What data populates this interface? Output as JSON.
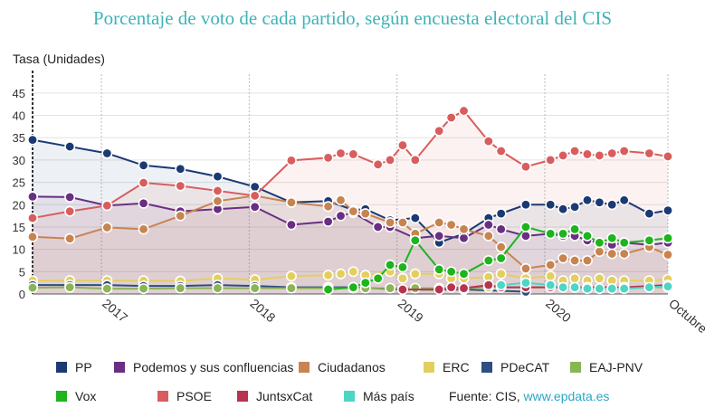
{
  "chart_data": {
    "type": "line",
    "title": "Porcentaje de voto de cada partido, según encuesta electoral del CIS",
    "ylabel": "Tasa (Unidades)",
    "ylim": [
      0,
      48
    ],
    "yticks": [
      0,
      5,
      10,
      15,
      20,
      25,
      30,
      35,
      40,
      45
    ],
    "xlim": [
      "2016-07-15",
      "2020-10-31"
    ],
    "xticks": [
      {
        "date": "2017-01-01",
        "label": "2017"
      },
      {
        "date": "2018-01-01",
        "label": "2018"
      },
      {
        "date": "2019-01-01",
        "label": "2019"
      },
      {
        "date": "2020-01-01",
        "label": "2020"
      },
      {
        "date": "2020-10-31",
        "label": "Octubre"
      }
    ],
    "grid": true,
    "legend_position": "bottom",
    "series": [
      {
        "name": "PP",
        "color": "#1b3a73",
        "points": [
          [
            "2016-07-15",
            34.5
          ],
          [
            "2016-10-15",
            33.0
          ],
          [
            "2017-01-15",
            31.5
          ],
          [
            "2017-04-15",
            28.8
          ],
          [
            "2017-07-15",
            28.0
          ],
          [
            "2017-10-15",
            26.3
          ],
          [
            "2018-01-15",
            24.0
          ],
          [
            "2018-04-15",
            20.5
          ],
          [
            "2018-07-15",
            20.8
          ],
          [
            "2018-09-15",
            18.8
          ],
          [
            "2018-10-15",
            19.0
          ],
          [
            "2018-12-15",
            16.5
          ],
          [
            "2019-02-15",
            17.0
          ],
          [
            "2019-04-15",
            11.5
          ],
          [
            "2019-06-15",
            13.5
          ],
          [
            "2019-08-15",
            17.0
          ],
          [
            "2019-09-15",
            18.0
          ],
          [
            "2019-11-15",
            20.0
          ],
          [
            "2020-01-15",
            20.0
          ],
          [
            "2020-02-15",
            19.0
          ],
          [
            "2020-03-15",
            19.5
          ],
          [
            "2020-04-15",
            21.0
          ],
          [
            "2020-05-15",
            20.5
          ],
          [
            "2020-06-15",
            20.0
          ],
          [
            "2020-07-15",
            21.0
          ],
          [
            "2020-09-15",
            18.0
          ],
          [
            "2020-10-31",
            18.7
          ]
        ]
      },
      {
        "name": "Podemos y sus confluencias",
        "color": "#6a2e82",
        "points": [
          [
            "2016-07-15",
            21.8
          ],
          [
            "2016-10-15",
            21.7
          ],
          [
            "2017-01-15",
            19.8
          ],
          [
            "2017-04-15",
            20.3
          ],
          [
            "2017-07-15",
            18.5
          ],
          [
            "2017-10-15",
            19.0
          ],
          [
            "2018-01-15",
            19.5
          ],
          [
            "2018-04-15",
            15.5
          ],
          [
            "2018-07-15",
            16.2
          ],
          [
            "2018-08-15",
            17.5
          ],
          [
            "2018-09-15",
            18.2
          ],
          [
            "2018-11-15",
            15.0
          ],
          [
            "2018-12-15",
            15.0
          ],
          [
            "2019-02-15",
            12.5
          ],
          [
            "2019-04-15",
            13.0
          ],
          [
            "2019-06-15",
            12.5
          ],
          [
            "2019-08-15",
            15.5
          ],
          [
            "2019-09-15",
            14.5
          ],
          [
            "2019-11-15",
            13.0
          ],
          [
            "2020-01-15",
            13.5
          ],
          [
            "2020-02-15",
            13.0
          ],
          [
            "2020-03-15",
            13.0
          ],
          [
            "2020-04-15",
            12.0
          ],
          [
            "2020-05-15",
            11.5
          ],
          [
            "2020-06-15",
            11.0
          ],
          [
            "2020-07-15",
            11.5
          ],
          [
            "2020-09-15",
            11.0
          ],
          [
            "2020-10-31",
            11.5
          ]
        ]
      },
      {
        "name": "Ciudadanos",
        "color": "#c88450",
        "points": [
          [
            "2016-07-15",
            12.8
          ],
          [
            "2016-10-15",
            12.4
          ],
          [
            "2017-01-15",
            14.9
          ],
          [
            "2017-04-15",
            14.5
          ],
          [
            "2017-07-15",
            17.5
          ],
          [
            "2017-10-15",
            20.8
          ],
          [
            "2018-01-15",
            22.0
          ],
          [
            "2018-04-15",
            20.5
          ],
          [
            "2018-07-15",
            19.6
          ],
          [
            "2018-08-15",
            21.0
          ],
          [
            "2018-09-15",
            18.5
          ],
          [
            "2018-10-15",
            18.0
          ],
          [
            "2018-12-15",
            16.0
          ],
          [
            "2019-01-15",
            16.0
          ],
          [
            "2019-02-15",
            13.5
          ],
          [
            "2019-04-15",
            16.0
          ],
          [
            "2019-05-15",
            15.5
          ],
          [
            "2019-06-15",
            14.5
          ],
          [
            "2019-08-15",
            13.0
          ],
          [
            "2019-09-15",
            10.5
          ],
          [
            "2019-11-15",
            5.7
          ],
          [
            "2020-01-15",
            6.5
          ],
          [
            "2020-02-15",
            8.0
          ],
          [
            "2020-03-15",
            7.5
          ],
          [
            "2020-04-15",
            7.5
          ],
          [
            "2020-05-15",
            9.5
          ],
          [
            "2020-06-15",
            9.0
          ],
          [
            "2020-07-15",
            9.0
          ],
          [
            "2020-09-15",
            10.5
          ],
          [
            "2020-10-31",
            8.8
          ]
        ]
      },
      {
        "name": "ERC",
        "color": "#e3cf5e",
        "points": [
          [
            "2016-07-15",
            3.0
          ],
          [
            "2016-10-15",
            3.0
          ],
          [
            "2017-01-15",
            3.0
          ],
          [
            "2017-04-15",
            3.0
          ],
          [
            "2017-07-15",
            2.9
          ],
          [
            "2017-10-15",
            3.5
          ],
          [
            "2018-01-15",
            3.2
          ],
          [
            "2018-04-15",
            4.0
          ],
          [
            "2018-07-15",
            4.2
          ],
          [
            "2018-08-15",
            4.5
          ],
          [
            "2018-09-15",
            5.0
          ],
          [
            "2018-10-15",
            4.2
          ],
          [
            "2018-12-15",
            5.0
          ],
          [
            "2019-01-15",
            3.5
          ],
          [
            "2019-02-15",
            4.5
          ],
          [
            "2019-04-15",
            4.5
          ],
          [
            "2019-05-15",
            3.5
          ],
          [
            "2019-06-15",
            3.5
          ],
          [
            "2019-08-15",
            3.8
          ],
          [
            "2019-09-15",
            4.5
          ],
          [
            "2019-11-15",
            3.5
          ],
          [
            "2020-01-15",
            4.0
          ],
          [
            "2020-02-15",
            3.0
          ],
          [
            "2020-03-15",
            3.5
          ],
          [
            "2020-04-15",
            3.0
          ],
          [
            "2020-05-15",
            3.5
          ],
          [
            "2020-06-15",
            3.0
          ],
          [
            "2020-07-15",
            3.0
          ],
          [
            "2020-09-15",
            3.0
          ],
          [
            "2020-10-31",
            3.3
          ]
        ]
      },
      {
        "name": "PDeCAT",
        "color": "#2c4e80",
        "points": [
          [
            "2016-07-15",
            2.0
          ],
          [
            "2016-10-15",
            2.0
          ],
          [
            "2017-01-15",
            2.0
          ],
          [
            "2017-04-15",
            1.8
          ],
          [
            "2017-07-15",
            1.8
          ],
          [
            "2017-10-15",
            2.0
          ],
          [
            "2018-01-15",
            1.8
          ],
          [
            "2018-04-15",
            1.5
          ],
          [
            "2018-07-15",
            1.5
          ],
          [
            "2018-09-15",
            1.5
          ],
          [
            "2019-01-15",
            1.0
          ],
          [
            "2019-06-15",
            1.0
          ],
          [
            "2019-11-15",
            0.5
          ]
        ]
      },
      {
        "name": "EAJ-PNV",
        "color": "#8bb455",
        "points": [
          [
            "2016-07-15",
            1.4
          ],
          [
            "2016-10-15",
            1.5
          ],
          [
            "2017-01-15",
            1.2
          ],
          [
            "2017-04-15",
            1.2
          ],
          [
            "2017-07-15",
            1.3
          ],
          [
            "2017-10-15",
            1.3
          ],
          [
            "2018-01-15",
            1.3
          ],
          [
            "2018-04-15",
            1.3
          ],
          [
            "2018-07-15",
            1.3
          ],
          [
            "2018-09-15",
            1.3
          ],
          [
            "2018-10-15",
            1.3
          ],
          [
            "2018-12-15",
            1.3
          ],
          [
            "2019-02-15",
            1.3
          ],
          [
            "2019-04-15",
            1.3
          ],
          [
            "2019-06-15",
            1.3
          ],
          [
            "2019-08-15",
            1.5
          ],
          [
            "2019-11-15",
            1.5
          ],
          [
            "2020-01-15",
            1.5
          ],
          [
            "2020-04-15",
            1.5
          ],
          [
            "2020-07-15",
            1.5
          ],
          [
            "2020-10-31",
            1.5
          ]
        ]
      },
      {
        "name": "Vox",
        "color": "#1db41d",
        "points": [
          [
            "2018-07-15",
            1.0
          ],
          [
            "2018-09-15",
            1.5
          ],
          [
            "2018-10-15",
            2.5
          ],
          [
            "2018-11-15",
            3.5
          ],
          [
            "2018-12-15",
            6.5
          ],
          [
            "2019-01-15",
            6.0
          ],
          [
            "2019-02-15",
            12.0
          ],
          [
            "2019-04-15",
            5.5
          ],
          [
            "2019-05-15",
            5.0
          ],
          [
            "2019-06-15",
            4.5
          ],
          [
            "2019-08-15",
            7.5
          ],
          [
            "2019-09-15",
            8.0
          ],
          [
            "2019-11-15",
            15.0
          ],
          [
            "2020-01-15",
            13.5
          ],
          [
            "2020-02-15",
            13.5
          ],
          [
            "2020-03-15",
            14.5
          ],
          [
            "2020-04-15",
            13.0
          ],
          [
            "2020-05-15",
            11.5
          ],
          [
            "2020-06-15",
            12.5
          ],
          [
            "2020-07-15",
            11.5
          ],
          [
            "2020-09-15",
            12.0
          ],
          [
            "2020-10-31",
            12.5
          ]
        ]
      },
      {
        "name": "PSOE",
        "color": "#d95d5d",
        "points": [
          [
            "2016-07-15",
            17.0
          ],
          [
            "2016-10-15",
            18.5
          ],
          [
            "2017-01-15",
            19.8
          ],
          [
            "2017-04-15",
            24.9
          ],
          [
            "2017-07-15",
            24.2
          ],
          [
            "2017-10-15",
            23.1
          ],
          [
            "2018-01-15",
            22.0
          ],
          [
            "2018-04-15",
            29.9
          ],
          [
            "2018-07-15",
            30.5
          ],
          [
            "2018-08-15",
            31.5
          ],
          [
            "2018-09-15",
            31.3
          ],
          [
            "2018-11-15",
            29.0
          ],
          [
            "2018-12-15",
            30.0
          ],
          [
            "2019-01-15",
            33.3
          ],
          [
            "2019-02-15",
            30.0
          ],
          [
            "2019-04-15",
            36.5
          ],
          [
            "2019-05-15",
            39.5
          ],
          [
            "2019-06-15",
            41.0
          ],
          [
            "2019-08-15",
            34.2
          ],
          [
            "2019-09-15",
            32.0
          ],
          [
            "2019-11-15",
            28.5
          ],
          [
            "2020-01-15",
            30.0
          ],
          [
            "2020-02-15",
            31.0
          ],
          [
            "2020-03-15",
            32.0
          ],
          [
            "2020-04-15",
            31.3
          ],
          [
            "2020-05-15",
            31.0
          ],
          [
            "2020-06-15",
            31.5
          ],
          [
            "2020-07-15",
            32.0
          ],
          [
            "2020-09-15",
            31.5
          ],
          [
            "2020-10-31",
            30.8
          ]
        ]
      },
      {
        "name": "JuntsxCat",
        "color": "#b8334f",
        "points": [
          [
            "2019-01-15",
            1.0
          ],
          [
            "2019-04-15",
            1.0
          ],
          [
            "2019-05-15",
            1.5
          ],
          [
            "2019-06-15",
            1.3
          ],
          [
            "2019-08-15",
            2.0
          ],
          [
            "2019-09-15",
            1.5
          ],
          [
            "2019-11-15",
            1.5
          ],
          [
            "2020-01-15",
            1.5
          ],
          [
            "2020-04-15",
            1.5
          ],
          [
            "2020-07-15",
            1.5
          ],
          [
            "2020-10-31",
            2.0
          ]
        ]
      },
      {
        "name": "Más país",
        "color": "#4dd5c6",
        "points": [
          [
            "2019-09-15",
            2.0
          ],
          [
            "2019-11-15",
            2.5
          ],
          [
            "2020-01-15",
            2.0
          ],
          [
            "2020-02-15",
            1.5
          ],
          [
            "2020-03-15",
            1.5
          ],
          [
            "2020-04-15",
            1.2
          ],
          [
            "2020-05-15",
            1.2
          ],
          [
            "2020-06-15",
            1.2
          ],
          [
            "2020-07-15",
            1.2
          ],
          [
            "2020-09-15",
            1.5
          ],
          [
            "2020-10-31",
            1.7
          ]
        ]
      }
    ]
  },
  "legend": {
    "source_label": "Fuente: CIS, ",
    "source_link": "www.epdata.es"
  }
}
